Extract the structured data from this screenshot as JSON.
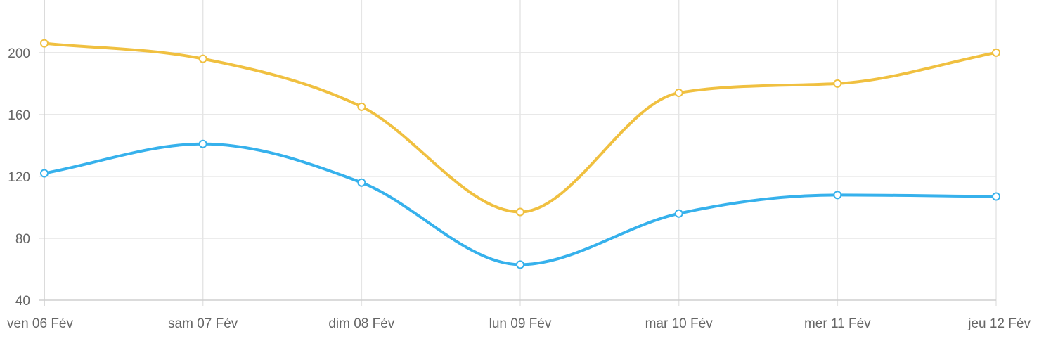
{
  "chart_data": {
    "type": "line",
    "title": "",
    "xlabel": "",
    "ylabel": "",
    "categories": [
      "ven 06 Fév",
      "sam 07 Fév",
      "dim 08 Fév",
      "lun 09 Fév",
      "mar 10 Fév",
      "mer 11 Fév",
      "jeu 12 Fév"
    ],
    "ylim": [
      40,
      234
    ],
    "yticks": [
      40,
      80,
      120,
      160,
      200
    ],
    "grid": true,
    "legend": "none",
    "curve": "smooth",
    "series": [
      {
        "color": "#f0c040",
        "values": [
          206,
          196,
          165,
          97,
          174,
          180,
          200
        ]
      },
      {
        "color": "#36b1ec",
        "values": [
          122,
          141,
          116,
          63,
          96,
          108,
          107
        ]
      }
    ]
  }
}
